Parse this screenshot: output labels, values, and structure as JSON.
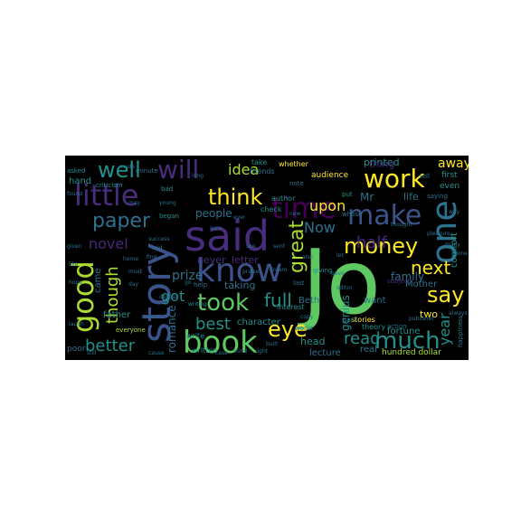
{
  "colors": {
    "background": "#000000",
    "page": "#ffffff",
    "palette": [
      "#5ec962",
      "#3b528b",
      "#440154",
      "#21918c",
      "#fde725",
      "#2c728e",
      "#482878",
      "#28ae80",
      "#addc30",
      "#472d7b"
    ]
  },
  "words": {
    "jo": "Jo",
    "said": "said",
    "story": "story",
    "know": "know",
    "book": "book",
    "good": "good",
    "time": "time",
    "little": "little",
    "make": "make",
    "one": "one",
    "work": "work",
    "will": "will",
    "well": "well",
    "think": "think",
    "took": "took",
    "much": "much",
    "money": "money",
    "paper": "paper",
    "say": "say",
    "eye": "eye",
    "great": "great",
    "next": "next",
    "full": "full",
    "read": "read",
    "better": "better",
    "though": "though",
    "best": "best",
    "half": "half",
    "upon": "upon",
    "novel": "novel",
    "year": "year",
    "idea": "idea",
    "now": "Now",
    "away": "away",
    "got": "got",
    "prize": "prize",
    "family": "family",
    "genius": "genius",
    "people": "people",
    "never": "never",
    "letter": "letter",
    "mr": "Mr",
    "printed": "printed",
    "thing": "thing",
    "life": "life",
    "romance": "romance",
    "father": "father",
    "mother": "Mother",
    "taking": "taking",
    "came": "came",
    "comfort": "comfort",
    "two": "two",
    "beth": "Beth",
    "hand": "hand",
    "head": "head",
    "want": "want",
    "real": "real",
    "fortune": "fortune",
    "lecture": "lecture",
    "hundred_dollar": "hundred dollar",
    "stories": "stories",
    "theory": "theory",
    "character": "character",
    "audience": "audience",
    "first": "first",
    "even": "even",
    "whether": "whether",
    "take": "take",
    "friends": "friends",
    "author": "author",
    "check": "check",
    "interest": "interest",
    "part": "part",
    "poor": "poor",
    "written": "written",
    "world": "world",
    "write": "write",
    "everyone": "everyone",
    "criticism": "criticism",
    "asked": "asked",
    "minute": "minute",
    "bad": "bad",
    "began": "began",
    "saying": "saying",
    "whose": "whose",
    "put": "put",
    "tell": "tell",
    "last": "last",
    "help": "help",
    "note": "note",
    "giving": "giving",
    "subject": "subject",
    "action": "action",
    "publisher": "publisher",
    "happiness": "happiness",
    "always": "always",
    "young": "young",
    "success": "success",
    "told": "told",
    "fine": "fine",
    "gave": "gave",
    "day": "day",
    "writing": "writing",
    "sent": "sent",
    "despair": "despair",
    "found": "found",
    "given": "given",
    "home": "home",
    "many": "many",
    "ever": "ever",
    "cause": "cause",
    "also": "also",
    "still": "still",
    "built": "built",
    "mind": "mind",
    "right": "right",
    "case": "case",
    "word": "word",
    "made": "made",
    "long": "long",
    "new": "new",
    "let": "let",
    "see": "see",
    "may": "may",
    "must": "must",
    "go": "go",
    "away2": "way",
    "like": "like",
    "done": "done",
    "hope": "hope",
    "laugh": "laugh",
    "copy": "copy",
    "editor": "editor",
    "pleasure": "pleasure",
    "sure": "sure",
    "think2": "thought",
    "praise": "praise",
    "dream": "dream"
  }
}
